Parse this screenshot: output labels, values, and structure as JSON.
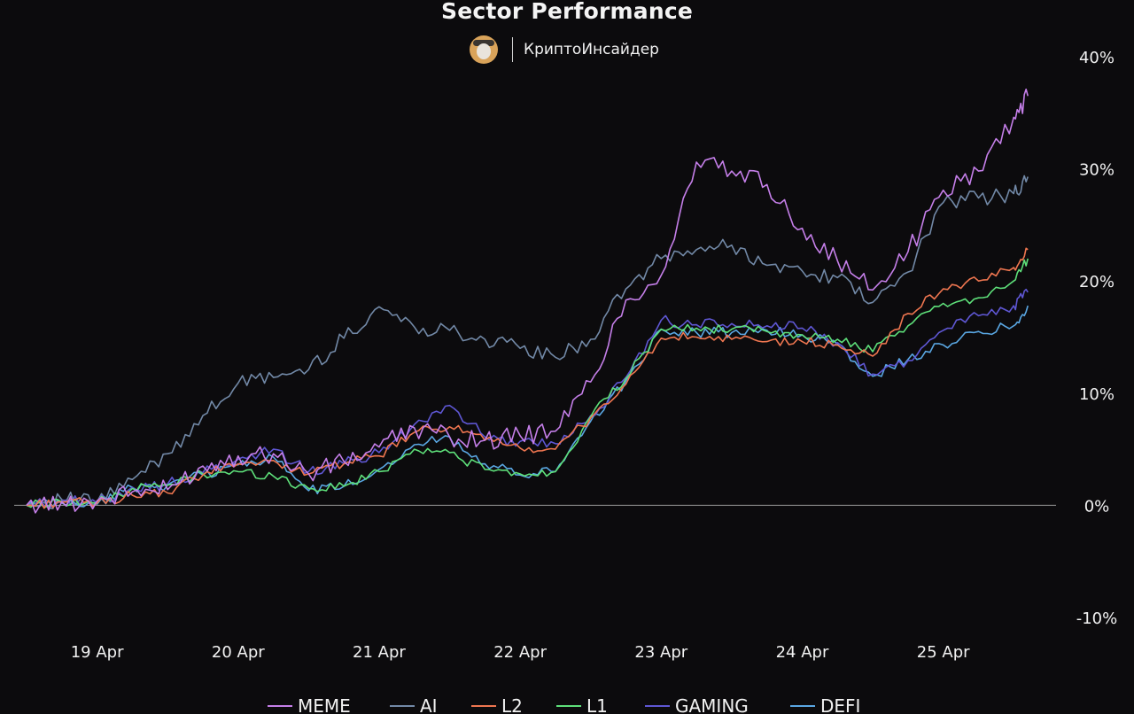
{
  "header": {
    "title": "Sector Performance",
    "brand_name": "КриптоИнсайдер"
  },
  "chart_data": {
    "type": "line",
    "title": "Sector Performance",
    "y_unit": "%",
    "ylim": [
      -10,
      40
    ],
    "yticks": [
      {
        "value": 40,
        "label": "40%"
      },
      {
        "value": 30,
        "label": "30%"
      },
      {
        "value": 20,
        "label": "20%"
      },
      {
        "value": 10,
        "label": "10%"
      },
      {
        "value": 0,
        "label": "0%"
      },
      {
        "value": -10,
        "label": "-10%"
      }
    ],
    "xlim": [
      0,
      7.3
    ],
    "xticks": [
      {
        "value": 0.5,
        "label": "19 Apr"
      },
      {
        "value": 1.5,
        "label": "20 Apr"
      },
      {
        "value": 2.5,
        "label": "21 Apr"
      },
      {
        "value": 3.5,
        "label": "22 Apr"
      },
      {
        "value": 4.5,
        "label": "23 Apr"
      },
      {
        "value": 5.5,
        "label": "24 Apr"
      },
      {
        "value": 6.5,
        "label": "25 Apr"
      }
    ],
    "x": [
      0.0,
      0.25,
      0.5,
      0.75,
      1.0,
      1.25,
      1.5,
      1.75,
      2.0,
      2.25,
      2.5,
      2.75,
      3.0,
      3.25,
      3.5,
      3.75,
      4.0,
      4.25,
      4.5,
      4.75,
      5.0,
      5.25,
      5.5,
      5.75,
      6.0,
      6.25,
      6.5,
      6.75,
      7.0,
      7.1
    ],
    "zero_line": true,
    "legend_position": "bottom",
    "series": [
      {
        "name": "MEME",
        "color": "#c57fe9",
        "values": [
          0.0,
          0.3,
          0.4,
          1.2,
          1.4,
          3.5,
          4.4,
          4.6,
          2.8,
          3.9,
          5.2,
          6.9,
          6.1,
          5.8,
          6.2,
          6.6,
          11.0,
          18.3,
          20.5,
          30.6,
          29.8,
          28.6,
          24.7,
          21.8,
          19.2,
          22.6,
          28.1,
          29.8,
          34.6,
          36.5
        ]
      },
      {
        "name": "AI",
        "color": "#7289a7",
        "values": [
          0.0,
          0.5,
          0.3,
          2.3,
          4.6,
          8.0,
          10.9,
          11.4,
          12.1,
          14.9,
          17.7,
          15.9,
          15.6,
          14.8,
          14.0,
          13.2,
          14.8,
          19.3,
          22.0,
          22.8,
          23.2,
          21.4,
          20.9,
          20.3,
          18.1,
          20.8,
          27.0,
          27.4,
          27.8,
          29.3
        ]
      },
      {
        "name": "L2",
        "color": "#ef7650",
        "values": [
          0.0,
          0.3,
          0.2,
          0.9,
          1.1,
          2.7,
          3.7,
          4.0,
          2.8,
          3.7,
          4.4,
          6.5,
          7.0,
          5.8,
          5.1,
          5.0,
          7.8,
          10.8,
          14.9,
          15.0,
          14.8,
          14.6,
          14.6,
          14.3,
          13.3,
          17.1,
          19.3,
          20.0,
          21.2,
          22.8
        ]
      },
      {
        "name": "L1",
        "color": "#5ee07a",
        "values": [
          0.0,
          0.3,
          0.2,
          1.5,
          1.8,
          2.8,
          3.0,
          2.6,
          1.5,
          1.7,
          3.0,
          5.0,
          4.7,
          3.2,
          2.8,
          3.0,
          7.9,
          11.3,
          15.7,
          15.8,
          15.7,
          15.5,
          15.2,
          14.8,
          13.7,
          16.0,
          18.0,
          18.5,
          20.0,
          22.0
        ]
      },
      {
        "name": "GAMING",
        "color": "#5f57d4",
        "values": [
          0.0,
          0.4,
          0.2,
          1.6,
          1.9,
          2.9,
          4.1,
          5.0,
          3.0,
          3.7,
          4.7,
          7.2,
          8.9,
          6.1,
          5.7,
          5.5,
          8.0,
          11.4,
          16.5,
          16.1,
          16.2,
          16.0,
          15.8,
          14.5,
          11.7,
          12.9,
          15.6,
          16.9,
          17.8,
          19.0
        ]
      },
      {
        "name": "DEFI",
        "color": "#5aa7e3",
        "values": [
          0.0,
          0.2,
          0.1,
          1.6,
          1.8,
          2.7,
          3.6,
          4.3,
          1.3,
          1.7,
          3.2,
          5.4,
          6.1,
          3.7,
          2.7,
          3.0,
          7.5,
          11.1,
          15.7,
          15.4,
          15.4,
          15.6,
          15.2,
          14.4,
          11.5,
          13.0,
          14.3,
          15.5,
          16.0,
          17.8
        ]
      }
    ]
  }
}
